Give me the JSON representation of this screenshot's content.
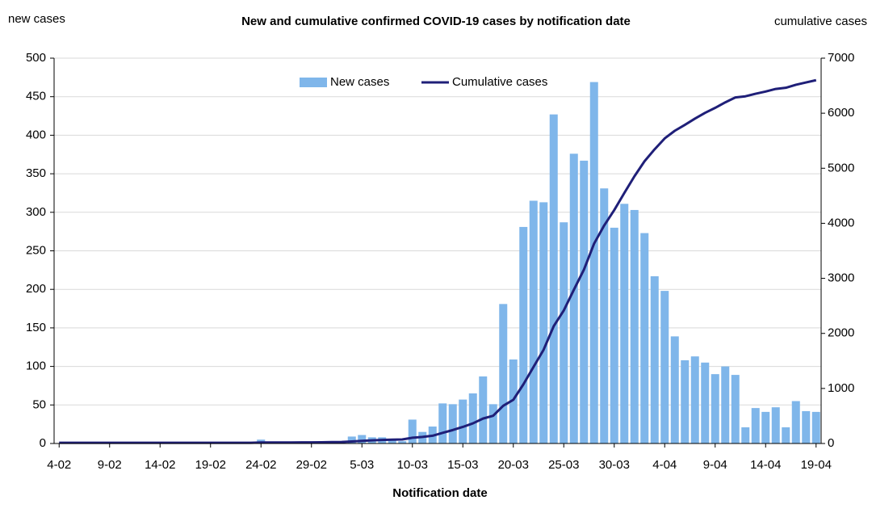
{
  "chart_data": {
    "type": "bar",
    "title": "New and cumulative confirmed COVID-19 cases by notification date",
    "y_label": "new cases",
    "y2_label": "cumulative cases",
    "x_label": "Notification date",
    "categories": [
      "4-02",
      null,
      null,
      null,
      null,
      "9-02",
      null,
      null,
      null,
      null,
      "14-02",
      null,
      null,
      null,
      null,
      "19-02",
      null,
      null,
      null,
      null,
      "24-02",
      null,
      null,
      null,
      null,
      "29-02",
      null,
      null,
      null,
      null,
      "5-03",
      null,
      null,
      null,
      null,
      "10-03",
      null,
      null,
      null,
      null,
      "15-03",
      null,
      null,
      null,
      null,
      "20-03",
      null,
      null,
      null,
      null,
      "25-03",
      null,
      null,
      null,
      null,
      "30-03",
      null,
      null,
      null,
      null,
      "4-04",
      null,
      null,
      null,
      null,
      "9-04",
      null,
      null,
      null,
      null,
      "14-04",
      null,
      null,
      null,
      null,
      "19-04"
    ],
    "series": [
      {
        "name": "New cases",
        "type": "bar",
        "color": "#7fb6ea",
        "values": [
          0,
          0,
          0,
          0,
          0,
          0,
          0,
          0,
          0,
          0,
          0,
          0,
          0,
          0,
          0,
          0,
          0,
          0,
          0,
          0,
          5,
          0,
          1,
          0,
          1,
          0,
          2,
          3,
          3,
          9,
          11,
          8,
          8,
          6,
          3,
          31,
          15,
          22,
          52,
          51,
          57,
          65,
          87,
          51,
          181,
          109,
          281,
          315,
          313,
          427,
          287,
          376,
          367,
          469,
          331,
          280,
          311,
          303,
          273,
          217,
          198,
          139,
          108,
          113,
          105,
          90,
          100,
          89,
          21,
          46,
          41,
          47,
          21,
          55,
          42,
          41
        ]
      },
      {
        "name": "Cumulative cases",
        "type": "line",
        "axis": "y2",
        "color": "#1f1f78",
        "values": [
          13,
          13,
          13,
          13,
          13,
          13,
          13,
          13,
          13,
          13,
          13,
          13,
          13,
          13,
          13,
          13,
          13,
          13,
          13,
          13,
          18,
          18,
          19,
          19,
          20,
          20,
          22,
          25,
          28,
          37,
          48,
          56,
          64,
          70,
          73,
          104,
          119,
          141,
          193,
          244,
          301,
          366,
          453,
          504,
          685,
          794,
          1075,
          1390,
          1703,
          2130,
          2417,
          2793,
          3160,
          3629,
          3960,
          4240,
          4551,
          4854,
          5127,
          5344,
          5542,
          5681,
          5789,
          5902,
          6007,
          6097,
          6197,
          6286,
          6307,
          6353,
          6394,
          6441,
          6462,
          6517,
          6559,
          6600
        ]
      }
    ],
    "ylim": [
      0,
      500
    ],
    "yticks": [
      0,
      50,
      100,
      150,
      200,
      250,
      300,
      350,
      400,
      450,
      500
    ],
    "y2lim": [
      0,
      7000
    ],
    "y2ticks": [
      0,
      1000,
      2000,
      3000,
      4000,
      5000,
      6000,
      7000
    ],
    "grid": true,
    "legend": "top"
  }
}
